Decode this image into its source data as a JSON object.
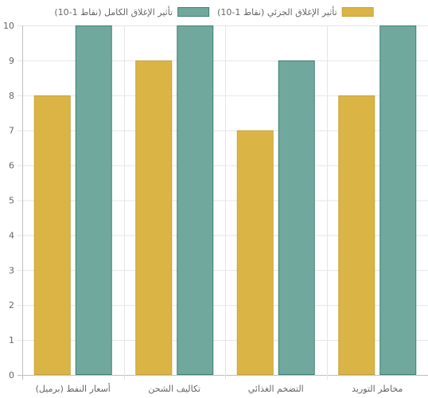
{
  "chart_data": {
    "type": "bar",
    "title": "",
    "xlabel": "",
    "ylabel": "",
    "categories": [
      "أسعار النفط (برميل)",
      "تكاليف الشحن",
      "التضخم الغذائي",
      "مخاطر التوريد"
    ],
    "series": [
      {
        "name": "تأثير الإغلاق الجزئي (نقاط 1-10)",
        "values": [
          8,
          9,
          7,
          8
        ],
        "color": "#DAB445",
        "border_color": "#C9A33A"
      },
      {
        "name": "تأثير الإغلاق الكامل (نقاط 1-10)",
        "values": [
          10,
          10,
          9,
          10
        ],
        "color": "#71A89E",
        "border_color": "#3E7F73"
      }
    ],
    "ylim": [
      0,
      10
    ],
    "yticks": [
      0,
      1,
      2,
      3,
      4,
      5,
      6,
      7,
      8,
      9,
      10
    ],
    "grid": true,
    "legend_position": "top"
  }
}
